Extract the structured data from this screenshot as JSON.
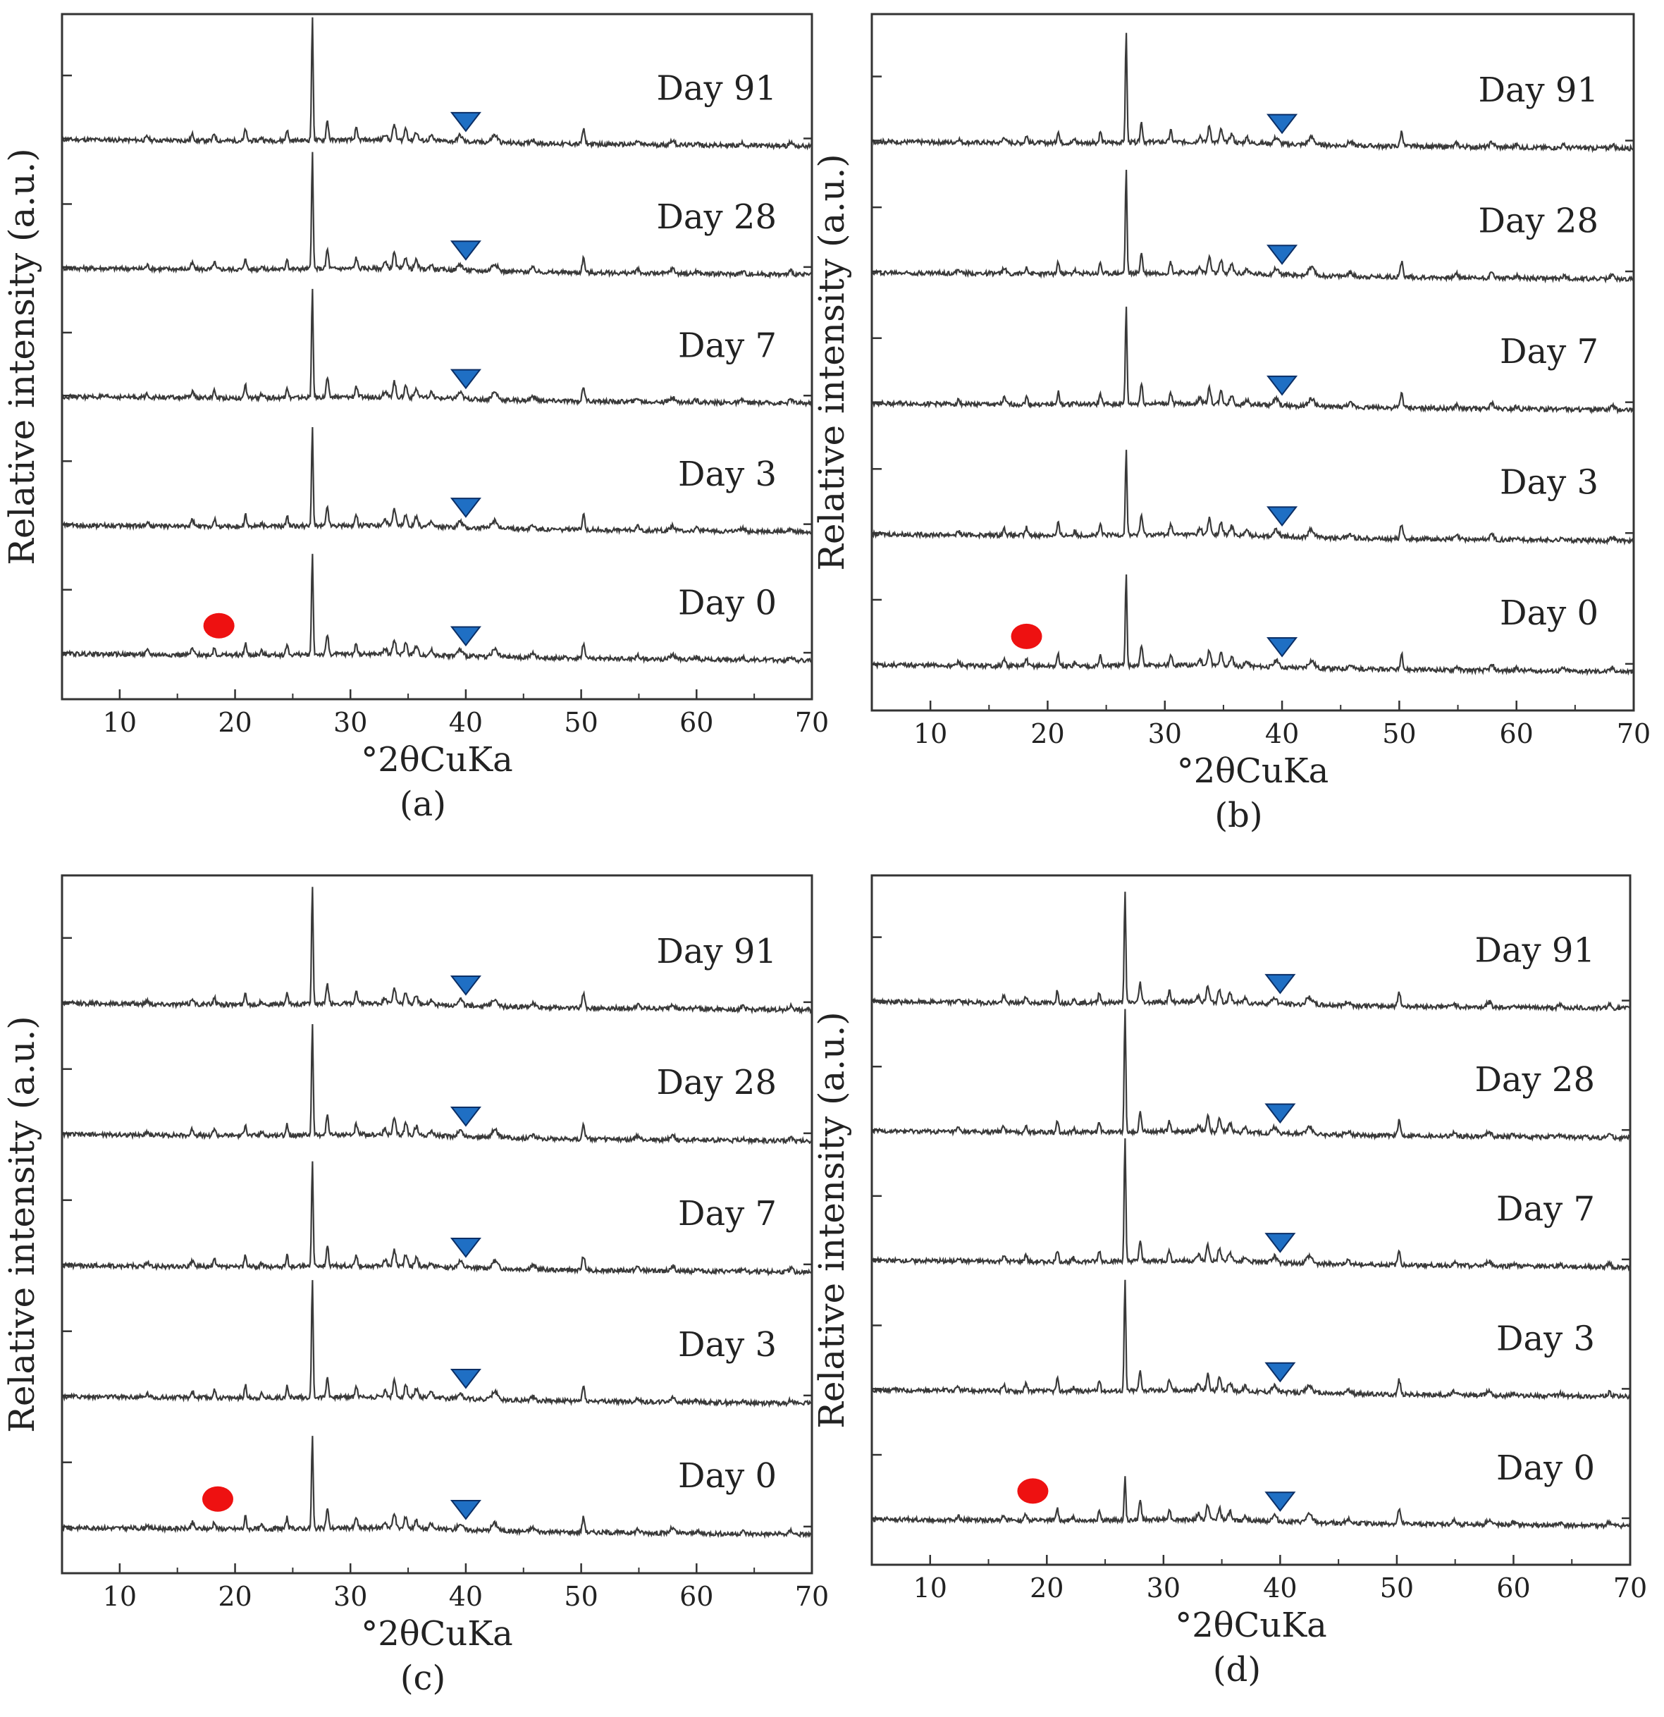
{
  "figure": {
    "colors": {
      "trace": "#3a3a3a",
      "axis": "#333333",
      "red_marker": "#ee1111",
      "blue_marker": "#1f6fc4",
      "blue_marker_edge": "#0b2f66"
    },
    "marker_icons": [
      "red-circle-icon",
      "blue-down-triangle-icon"
    ]
  },
  "chart_data": [
    {
      "panel": "(a)",
      "type": "line",
      "xlabel": "°2θCuKa",
      "ylabel": "Relative intensity (a.u.)",
      "xlim": [
        5,
        70
      ],
      "xticks": [
        10,
        20,
        30,
        40,
        50,
        60,
        70
      ],
      "series": [
        {
          "name": "Day 91",
          "order": 4,
          "main_peak": 1.0
        },
        {
          "name": "Day 28",
          "order": 3,
          "main_peak": 0.95
        },
        {
          "name": "Day 7",
          "order": 2,
          "main_peak": 0.88
        },
        {
          "name": "Day 3",
          "order": 1,
          "main_peak": 0.8
        },
        {
          "name": "Day 0",
          "order": 0,
          "main_peak": 0.85
        }
      ],
      "peaks_2theta": [
        12.4,
        16.3,
        18.2,
        20.9,
        22.3,
        24.5,
        26.7,
        28.0,
        30.5,
        33.0,
        33.8,
        34.8,
        35.7,
        37.0,
        39.5,
        42.5,
        45.8,
        50.2,
        54.9,
        57.9,
        60.0,
        64.0,
        68.2
      ],
      "annotations": [
        {
          "marker": "red-circle",
          "x": 18.6,
          "series": "Day 0"
        },
        {
          "marker": "blue-triangle",
          "x": 40.0,
          "series": "all"
        }
      ]
    },
    {
      "panel": "(b)",
      "type": "line",
      "xlabel": "°2θCuKa",
      "ylabel": "Relative intensity (a.u.)",
      "xlim": [
        5,
        70
      ],
      "xticks": [
        10,
        20,
        30,
        40,
        50,
        60,
        70
      ],
      "series": [
        {
          "name": "Day 91",
          "order": 4,
          "main_peak": 0.9
        },
        {
          "name": "Day 28",
          "order": 3,
          "main_peak": 0.85
        },
        {
          "name": "Day 7",
          "order": 2,
          "main_peak": 0.8
        },
        {
          "name": "Day 3",
          "order": 1,
          "main_peak": 0.7
        },
        {
          "name": "Day 0",
          "order": 0,
          "main_peak": 0.75
        }
      ],
      "peaks_2theta": [
        12.4,
        16.3,
        18.2,
        20.9,
        22.3,
        24.5,
        26.7,
        28.0,
        30.5,
        33.0,
        33.8,
        34.8,
        35.7,
        37.0,
        39.5,
        42.5,
        45.8,
        50.2,
        54.9,
        57.9,
        60.0,
        64.0,
        68.2
      ],
      "annotations": [
        {
          "marker": "red-circle",
          "x": 18.2,
          "series": "Day 0"
        },
        {
          "marker": "blue-triangle",
          "x": 40.0,
          "series": "all"
        }
      ]
    },
    {
      "panel": "(c)",
      "type": "line",
      "xlabel": "°2θCuKa",
      "ylabel": "Relative intensity (a.u.)",
      "xlim": [
        5,
        70
      ],
      "xticks": [
        10,
        20,
        30,
        40,
        50,
        60,
        70
      ],
      "series": [
        {
          "name": "Day 91",
          "order": 4,
          "main_peak": 0.95
        },
        {
          "name": "Day 28",
          "order": 3,
          "main_peak": 0.9
        },
        {
          "name": "Day 7",
          "order": 2,
          "main_peak": 0.85
        },
        {
          "name": "Day 3",
          "order": 1,
          "main_peak": 0.95
        },
        {
          "name": "Day 0",
          "order": 0,
          "main_peak": 0.75
        }
      ],
      "peaks_2theta": [
        12.4,
        16.3,
        18.2,
        20.9,
        22.3,
        24.5,
        26.7,
        28.0,
        30.5,
        33.0,
        33.8,
        34.8,
        35.7,
        37.0,
        39.5,
        42.5,
        45.8,
        50.2,
        54.9,
        57.9,
        60.0,
        64.0,
        68.2
      ],
      "annotations": [
        {
          "marker": "red-circle",
          "x": 18.5,
          "series": "Day 0"
        },
        {
          "marker": "blue-triangle",
          "x": 40.0,
          "series": "all"
        }
      ]
    },
    {
      "panel": "(d)",
      "type": "line",
      "xlabel": "°2θCuKa",
      "ylabel": "Relative intensity (a.u.)",
      "xlim": [
        5,
        70
      ],
      "xticks": [
        10,
        20,
        30,
        40,
        50,
        60,
        70
      ],
      "series": [
        {
          "name": "Day 91",
          "order": 4,
          "main_peak": 0.9
        },
        {
          "name": "Day 28",
          "order": 3,
          "main_peak": 1.0
        },
        {
          "name": "Day 7",
          "order": 2,
          "main_peak": 1.0
        },
        {
          "name": "Day 3",
          "order": 1,
          "main_peak": 0.9
        },
        {
          "name": "Day 0",
          "order": 0,
          "main_peak": 0.35
        }
      ],
      "peaks_2theta": [
        12.4,
        16.3,
        18.2,
        20.9,
        22.3,
        24.5,
        26.7,
        28.0,
        30.5,
        33.0,
        33.8,
        34.8,
        35.7,
        37.0,
        39.5,
        42.5,
        45.8,
        50.2,
        54.9,
        57.9,
        60.0,
        64.0,
        68.2
      ],
      "annotations": [
        {
          "marker": "red-circle",
          "x": 18.8,
          "series": "Day 0"
        },
        {
          "marker": "blue-triangle",
          "x": 40.0,
          "series": "all"
        }
      ]
    }
  ]
}
